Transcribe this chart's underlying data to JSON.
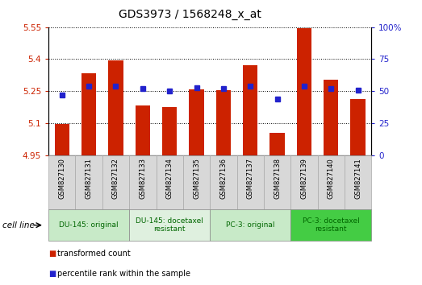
{
  "title": "GDS3973 / 1568248_x_at",
  "samples": [
    "GSM827130",
    "GSM827131",
    "GSM827132",
    "GSM827133",
    "GSM827134",
    "GSM827135",
    "GSM827136",
    "GSM827137",
    "GSM827138",
    "GSM827139",
    "GSM827140",
    "GSM827141"
  ],
  "transformed_counts": [
    5.095,
    5.335,
    5.395,
    5.185,
    5.175,
    5.26,
    5.255,
    5.37,
    5.055,
    5.545,
    5.305,
    5.215
  ],
  "percentile_ranks": [
    47,
    54,
    54,
    52,
    50,
    53,
    52,
    54,
    44,
    54,
    52,
    51
  ],
  "ylim_left": [
    4.95,
    5.55
  ],
  "ylim_right": [
    0,
    100
  ],
  "yticks_left": [
    4.95,
    5.1,
    5.25,
    5.4,
    5.55
  ],
  "yticks_right": [
    0,
    25,
    50,
    75,
    100
  ],
  "ytick_labels_left": [
    "4.95",
    "5.1",
    "5.25",
    "5.4",
    "5.55"
  ],
  "ytick_labels_right": [
    "0",
    "25",
    "50",
    "75",
    "100%"
  ],
  "bar_color": "#cc2200",
  "dot_color": "#2222cc",
  "grid_color": "#000000",
  "sample_box_color": "#d8d8d8",
  "sample_box_edge": "#aaaaaa",
  "cell_line_groups": [
    {
      "label": "DU-145: original",
      "start": 0,
      "end": 3,
      "color": "#c8eac8"
    },
    {
      "label": "DU-145: docetaxel\nresistant",
      "start": 3,
      "end": 6,
      "color": "#dff0df"
    },
    {
      "label": "PC-3: original",
      "start": 6,
      "end": 9,
      "color": "#c8eac8"
    },
    {
      "label": "PC-3: docetaxel\nresistant",
      "start": 9,
      "end": 12,
      "color": "#44cc44"
    }
  ],
  "legend_items": [
    {
      "label": "transformed count",
      "color": "#cc2200"
    },
    {
      "label": "percentile rank within the sample",
      "color": "#2222cc"
    }
  ],
  "cell_line_label": "cell line"
}
